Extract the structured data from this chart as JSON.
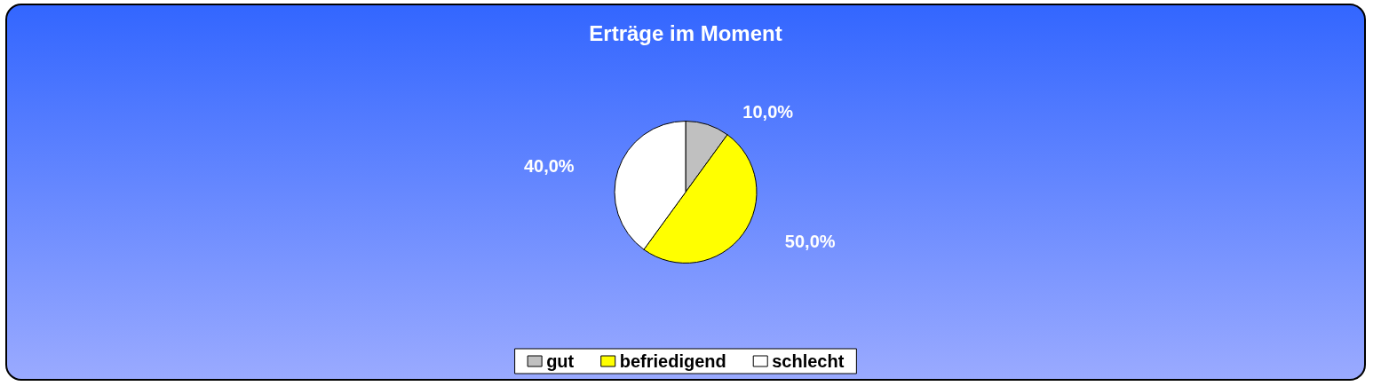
{
  "chart_data": {
    "type": "pie",
    "title": "Erträge im Moment",
    "categories": [
      "gut",
      "befriedigend",
      "schlecht"
    ],
    "values": [
      10,
      50,
      40
    ],
    "colors": [
      "#c0c0c0",
      "#ffff00",
      "#ffffff"
    ],
    "value_labels": [
      "10,0%",
      "50,0%",
      "40,0%"
    ],
    "legend": "bottom"
  }
}
